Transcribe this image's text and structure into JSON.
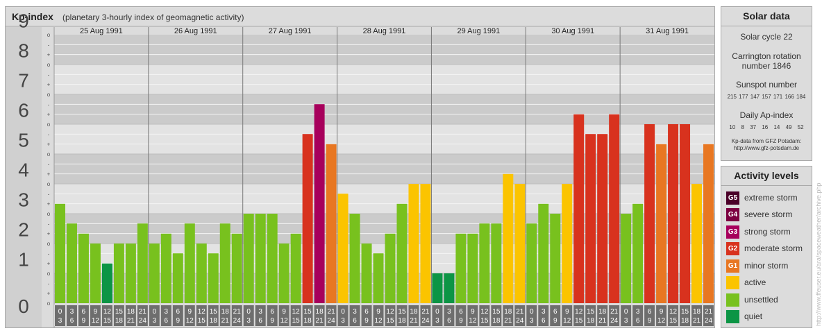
{
  "title": "Kp-index",
  "subtitle": "(planetary 3-hourly index of geomagnetic activity)",
  "chart_data": {
    "type": "bar",
    "ylim": [
      0,
      9
    ],
    "y_ticks": [
      "0",
      "1",
      "2",
      "3",
      "4",
      "5",
      "6",
      "7",
      "8",
      "9"
    ],
    "y_subticks": [
      "+",
      "o",
      "-"
    ],
    "days": [
      "25 Aug 1991",
      "26 Aug 1991",
      "27 Aug 1991",
      "28 Aug 1991",
      "29 Aug 1991",
      "30 Aug 1991",
      "31 Aug 1991"
    ],
    "interval_labels": [
      [
        "0",
        "3"
      ],
      [
        "3",
        "6"
      ],
      [
        "6",
        "9"
      ],
      [
        "9",
        "12"
      ],
      [
        "12",
        "15"
      ],
      [
        "15",
        "18"
      ],
      [
        "18",
        "21"
      ],
      [
        "21",
        "24"
      ]
    ],
    "values": [
      [
        3.33,
        2.67,
        2.33,
        2.0,
        1.33,
        2.0,
        2.0,
        2.67
      ],
      [
        2.0,
        2.33,
        1.67,
        2.67,
        2.0,
        1.67,
        2.67,
        2.33
      ],
      [
        3.0,
        3.0,
        3.0,
        2.0,
        2.33,
        5.67,
        6.67,
        5.33
      ],
      [
        3.67,
        3.0,
        2.0,
        1.67,
        2.33,
        3.33,
        4.0,
        4.0
      ],
      [
        1.0,
        1.0,
        2.33,
        2.33,
        2.67,
        2.67,
        4.33,
        4.0
      ],
      [
        2.67,
        3.33,
        3.0,
        4.0,
        6.33,
        5.67,
        5.67,
        6.33
      ],
      [
        3.0,
        3.33,
        6.0,
        5.33,
        6.0,
        6.0,
        4.0,
        5.33
      ]
    ],
    "level_colors": {
      "quiet": "#0c9545",
      "unsettled": "#78c11e",
      "active": "#fbc400",
      "G1": "#e87722",
      "G2": "#d8321e",
      "G3": "#a7005c",
      "G4": "#7c0040",
      "G5": "#4a0028"
    }
  },
  "solar": {
    "title": "Solar data",
    "cycle": "Solar cycle 22",
    "carrington_line1": "Carrington rotation",
    "carrington_line2": "number 1846",
    "sunspot_title": "Sunspot number",
    "sunspot_values": "215 177 147 157 171 166 184",
    "ap_title": "Daily Ap-index",
    "ap_values": "10 8 37 16 14 49 52",
    "source_line1": "Kp-data from GFZ Potsdam:",
    "source_line2": "http://www.gfz-potsdam.de"
  },
  "activity": {
    "title": "Activity levels",
    "levels": [
      {
        "code": "G5",
        "label": "extreme storm",
        "color": "#4a0028"
      },
      {
        "code": "G4",
        "label": "severe storm",
        "color": "#7c0040"
      },
      {
        "code": "G3",
        "label": "strong storm",
        "color": "#a7005c"
      },
      {
        "code": "G2",
        "label": "moderate storm",
        "color": "#d8321e"
      },
      {
        "code": "G1",
        "label": "minor storm",
        "color": "#e87722"
      },
      {
        "code": "",
        "label": "active",
        "color": "#fbc400"
      },
      {
        "code": "",
        "label": "unsettled",
        "color": "#78c11e"
      },
      {
        "code": "",
        "label": "quiet",
        "color": "#0c9545"
      }
    ]
  },
  "credit": "http://www.ffeuser.eu/ara/spaceweather/archive.php"
}
